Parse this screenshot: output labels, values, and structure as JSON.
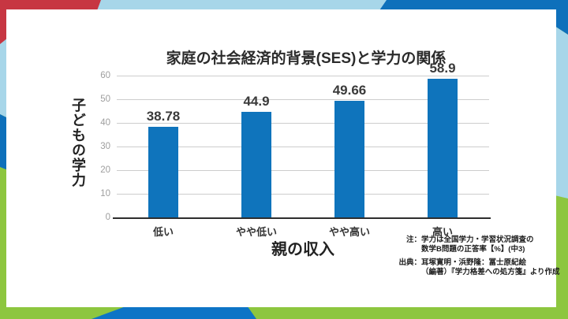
{
  "frame": {
    "red": "#c73642",
    "light_blue": "#a7d6e9",
    "dark_blue": "#0e70bb",
    "green": "#8dc63f",
    "bottom_blue": "#0d74c6",
    "card_bg": "#ffffff"
  },
  "chart_data": {
    "type": "bar",
    "title": "家庭の社会経済的背景(SES)と学力の関係",
    "categories": [
      "低い",
      "やや低い",
      "やや高い",
      "高い"
    ],
    "values": [
      38.78,
      44.9,
      49.66,
      58.9
    ],
    "value_labels": [
      "38.78",
      "44.9",
      "49.66",
      "58.9"
    ],
    "xlabel": "親の収入",
    "ylabel": "子どもの学力",
    "yticks": [
      0,
      10,
      20,
      30,
      40,
      50,
      60
    ],
    "ylim": [
      0,
      60
    ],
    "grid": true,
    "legend": "none",
    "bar_color": "#0f74bc",
    "tick_color": "#9e9e9e",
    "grid_color": "#cdcdcd"
  },
  "notes": {
    "note_label": "注：",
    "note_line1": "学力は全国学力・学習状況調査の",
    "note_line2": "数学B問題の正答率【%】(中3)",
    "source_label": "出典：",
    "source_line1": "耳塚寛明・浜野隆：冨士原紀絵",
    "source_line2": "（編著）『学力格差への処方箋』より作成"
  }
}
